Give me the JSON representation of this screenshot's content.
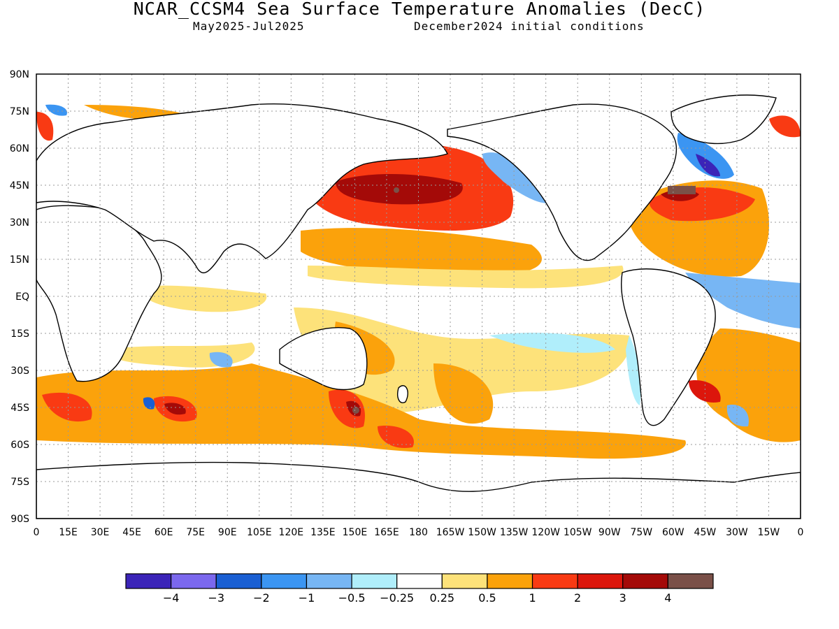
{
  "title": "NCAR_CCSM4 Sea Surface Temperature Anomalies (DecC)",
  "subtitle_left": "May2025-Jul2025",
  "subtitle_right": "December2024 initial conditions",
  "lat_labels": [
    "90N",
    "75N",
    "60N",
    "45N",
    "30N",
    "15N",
    "EQ",
    "15S",
    "30S",
    "45S",
    "60S",
    "75S",
    "90S"
  ],
  "lon_labels": [
    "0",
    "15E",
    "30E",
    "45E",
    "60E",
    "75E",
    "90E",
    "105E",
    "120E",
    "135E",
    "150E",
    "165E",
    "180",
    "165W",
    "150W",
    "135W",
    "120W",
    "105W",
    "90W",
    "75W",
    "60W",
    "45W",
    "30W",
    "15W",
    "0"
  ],
  "colorbar": {
    "colors": [
      "#3b24b8",
      "#7b68ee",
      "#1a5fd3",
      "#3b95f2",
      "#77b6f4",
      "#b0eefb",
      "#ffffff",
      "#fde27a",
      "#fba20b",
      "#f93a13",
      "#dc160c",
      "#a40a08",
      "#7a5048"
    ],
    "labels": [
      "−4",
      "−3",
      "−2",
      "−1",
      "−0.5",
      "−0.25",
      "0.25",
      "0.5",
      "1",
      "2",
      "3",
      "4"
    ]
  }
}
